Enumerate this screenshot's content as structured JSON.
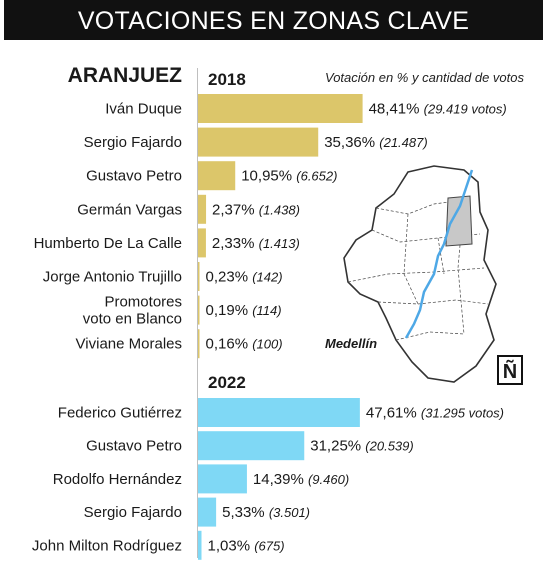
{
  "title": "VOTACIONES EN ZONAS CLAVE",
  "zone": "ARANJUEZ",
  "subtitle": "Votación en % y cantidad de votos",
  "map": {
    "city_label": "Medellín",
    "north_label": "Ñ"
  },
  "colors": {
    "bar_2018": "#dcc66a",
    "bar_2022": "#7fd8f5",
    "river": "#4ea8e6",
    "highlight_zone": "#c8c8c8"
  },
  "chart_data": [
    {
      "type": "bar",
      "orientation": "horizontal",
      "title": "2018",
      "categories": [
        "Iván Duque",
        "Sergio Fajardo",
        "Gustavo Petro",
        "Germán Vargas",
        "Humberto De La Calle",
        "Jorge Antonio Trujillo",
        "Promotores voto en Blanco",
        "Viviane Morales"
      ],
      "category_lines": [
        [
          "Iván Duque"
        ],
        [
          "Sergio Fajardo"
        ],
        [
          "Gustavo Petro"
        ],
        [
          "Germán Vargas"
        ],
        [
          "Humberto De La Calle"
        ],
        [
          "Jorge Antonio Trujillo"
        ],
        [
          "Promotores",
          "voto en Blanco"
        ],
        [
          "Viviane Morales"
        ]
      ],
      "values": [
        48.41,
        35.36,
        10.95,
        2.37,
        2.33,
        0.23,
        0.19,
        0.16
      ],
      "value_labels": [
        "48,41%",
        "35,36%",
        "10,95%",
        "2,37%",
        "2,33%",
        "0,23%",
        "0,19%",
        "0,16%"
      ],
      "vote_labels": [
        "(29.419 votos)",
        "(21.487)",
        "(6.652)",
        "(1.438)",
        "(1.413)",
        "(142)",
        "(114)",
        "(100)"
      ],
      "xlim": [
        0,
        100
      ]
    },
    {
      "type": "bar",
      "orientation": "horizontal",
      "title": "2022",
      "categories": [
        "Federico Gutiérrez",
        "Gustavo Petro",
        "Rodolfo Hernández",
        "Sergio Fajardo",
        "John Milton Rodríguez"
      ],
      "category_lines": [
        [
          "Federico Gutiérrez"
        ],
        [
          "Gustavo Petro"
        ],
        [
          "Rodolfo Hernández"
        ],
        [
          "Sergio Fajardo"
        ],
        [
          "John Milton Rodríguez"
        ]
      ],
      "values": [
        47.61,
        31.25,
        14.39,
        5.33,
        1.03
      ],
      "value_labels": [
        "47,61%",
        "31,25%",
        "14,39%",
        "5,33%",
        "1,03%"
      ],
      "vote_labels": [
        "(31.295 votos)",
        "(20.539)",
        "(9.460)",
        "(3.501)",
        "(675)"
      ],
      "xlim": [
        0,
        100
      ]
    }
  ]
}
